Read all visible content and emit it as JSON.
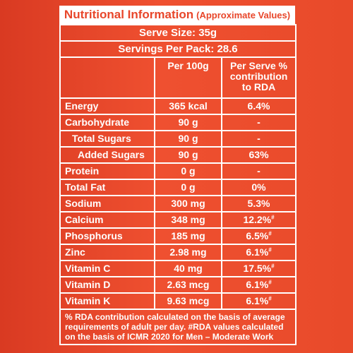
{
  "header": {
    "title": "Nutritional Information",
    "subtitle": "(Approximate Values)"
  },
  "serve_size": "Serve Size: 35g",
  "servings_per_pack": "Servings Per Pack: 28.6",
  "columns": {
    "per100": "Per 100g",
    "rda_line1": "Per Serve %",
    "rda_line2": "contribution",
    "rda_line3": "to RDA"
  },
  "rows": [
    {
      "name": "Energy",
      "value": "365 kcal",
      "rda": "6.4%",
      "mark": ""
    },
    {
      "name": "Carbohydrate",
      "value": "90 g",
      "rda": "-",
      "mark": ""
    },
    {
      "name": "Total Sugars",
      "value": "90 g",
      "rda": "-",
      "mark": ""
    },
    {
      "name": "Added Sugars",
      "value": "90 g",
      "rda": "63%",
      "mark": ""
    },
    {
      "name": "Protein",
      "value": "0 g",
      "rda": "-",
      "mark": ""
    },
    {
      "name": "Total Fat",
      "value": "0 g",
      "rda": "0%",
      "mark": ""
    },
    {
      "name": "Sodium",
      "value": "300 mg",
      "rda": "5.3%",
      "mark": ""
    },
    {
      "name": "Calcium",
      "value": "348 mg",
      "rda": "12.2%",
      "mark": "#"
    },
    {
      "name": "Phosphorus",
      "value": "185 mg",
      "rda": "6.5%",
      "mark": "#"
    },
    {
      "name": "Zinc",
      "value": "2.98 mg",
      "rda": "6.1%",
      "mark": "#"
    },
    {
      "name": "Vitamin C",
      "value": "40 mg",
      "rda": "17.5%",
      "mark": "#"
    },
    {
      "name": "Vitamin D",
      "value": "2.63 mcg",
      "rda": "6.1%",
      "mark": "#"
    },
    {
      "name": "Vitamin K",
      "value": "9.63 mcg",
      "rda": "6.1%",
      "mark": "#"
    }
  ],
  "footnote": "% RDA contribution calculated on the basis of average requirements of adult per day. #RDA values calculated on the basis of ICMR 2020 for Men – Moderate Work"
}
